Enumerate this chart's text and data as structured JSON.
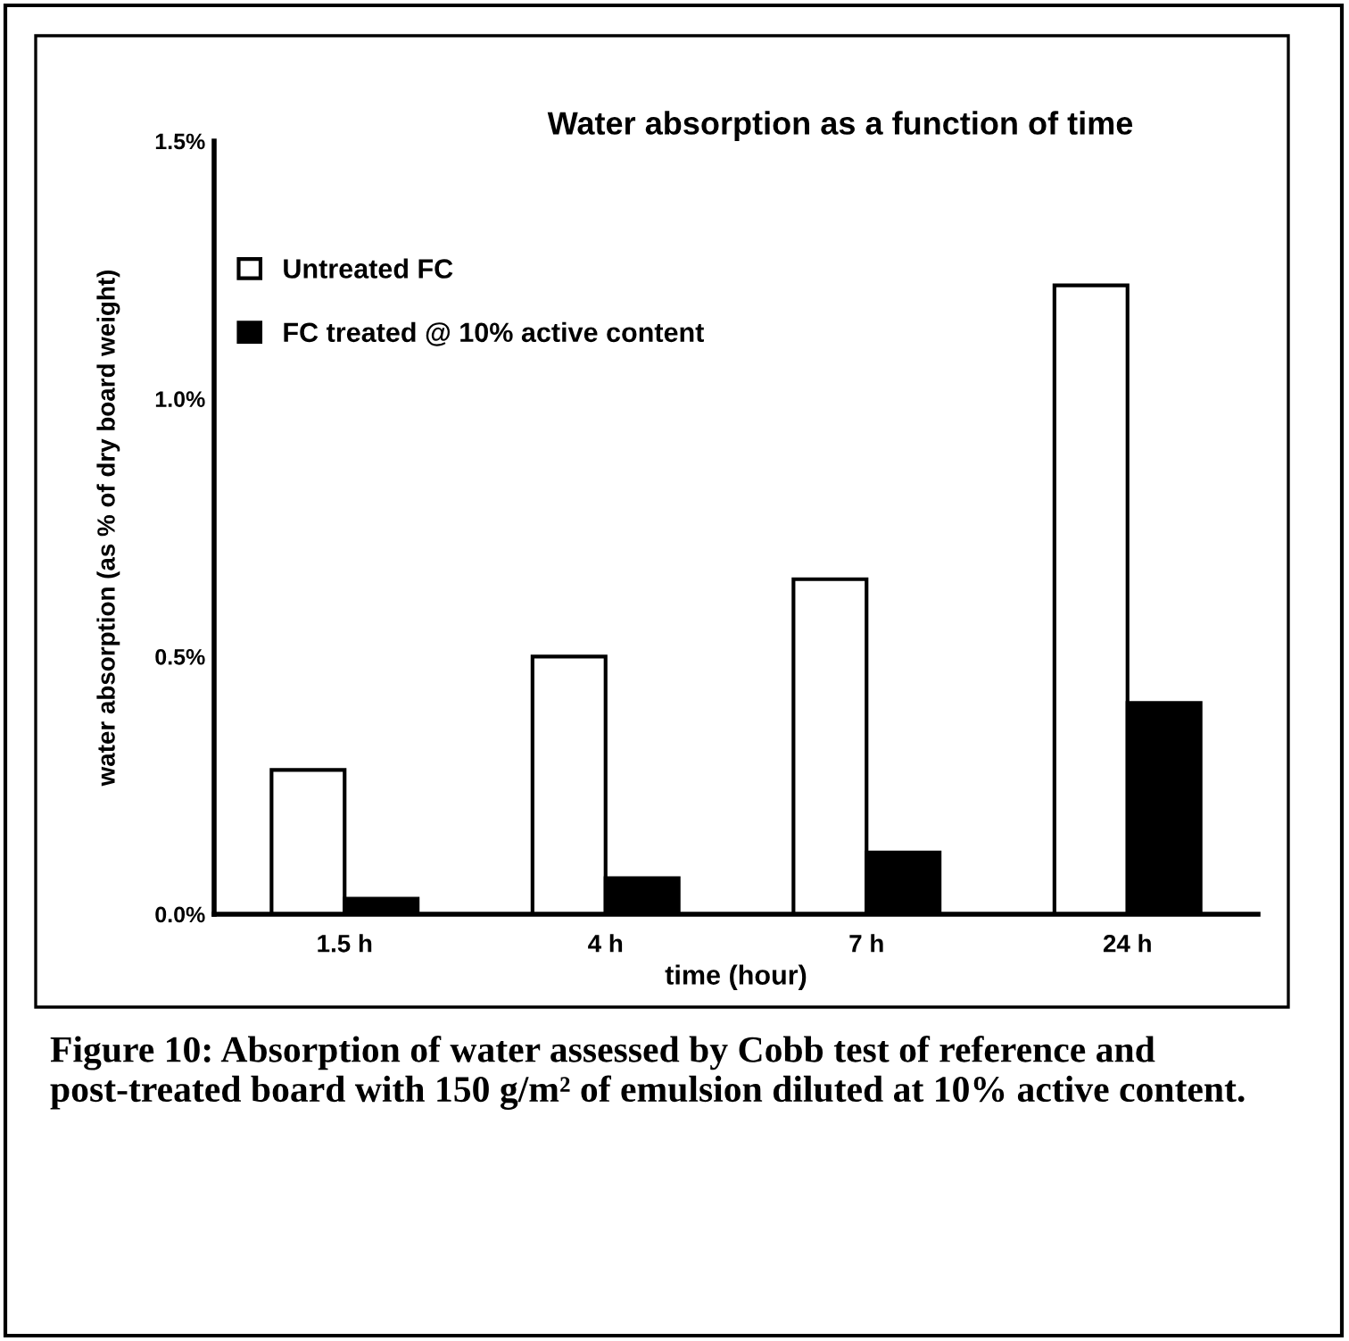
{
  "chart_data": {
    "type": "bar",
    "title": "Water absorption as a function of time",
    "xlabel": "time (hour)",
    "ylabel": "water absorption (as % of dry board weight)",
    "categories": [
      "1.5 h",
      "4 h",
      "7 h",
      "24 h"
    ],
    "series": [
      {
        "name": "Untreated FC",
        "color": "#ffffff",
        "values": [
          0.28,
          0.5,
          0.65,
          1.22
        ]
      },
      {
        "name": "FC treated @ 10% active content",
        "color": "#000000",
        "values": [
          0.03,
          0.07,
          0.12,
          0.41
        ]
      }
    ],
    "ylim": [
      0,
      1.5
    ],
    "yticks": [
      {
        "value": 0,
        "label": "0.0%"
      },
      {
        "value": 0.5,
        "label": "0.5%"
      },
      {
        "value": 1.0,
        "label": "1.0%"
      },
      {
        "value": 1.5,
        "label": "1.5%"
      }
    ],
    "grid": false,
    "legend": "top left",
    "annotations": [
      "Figure 10: Absorption of water assessed by Cobb test of reference and post-treated board with 150 g/m² of emulsion diluted at 10% active content."
    ]
  }
}
